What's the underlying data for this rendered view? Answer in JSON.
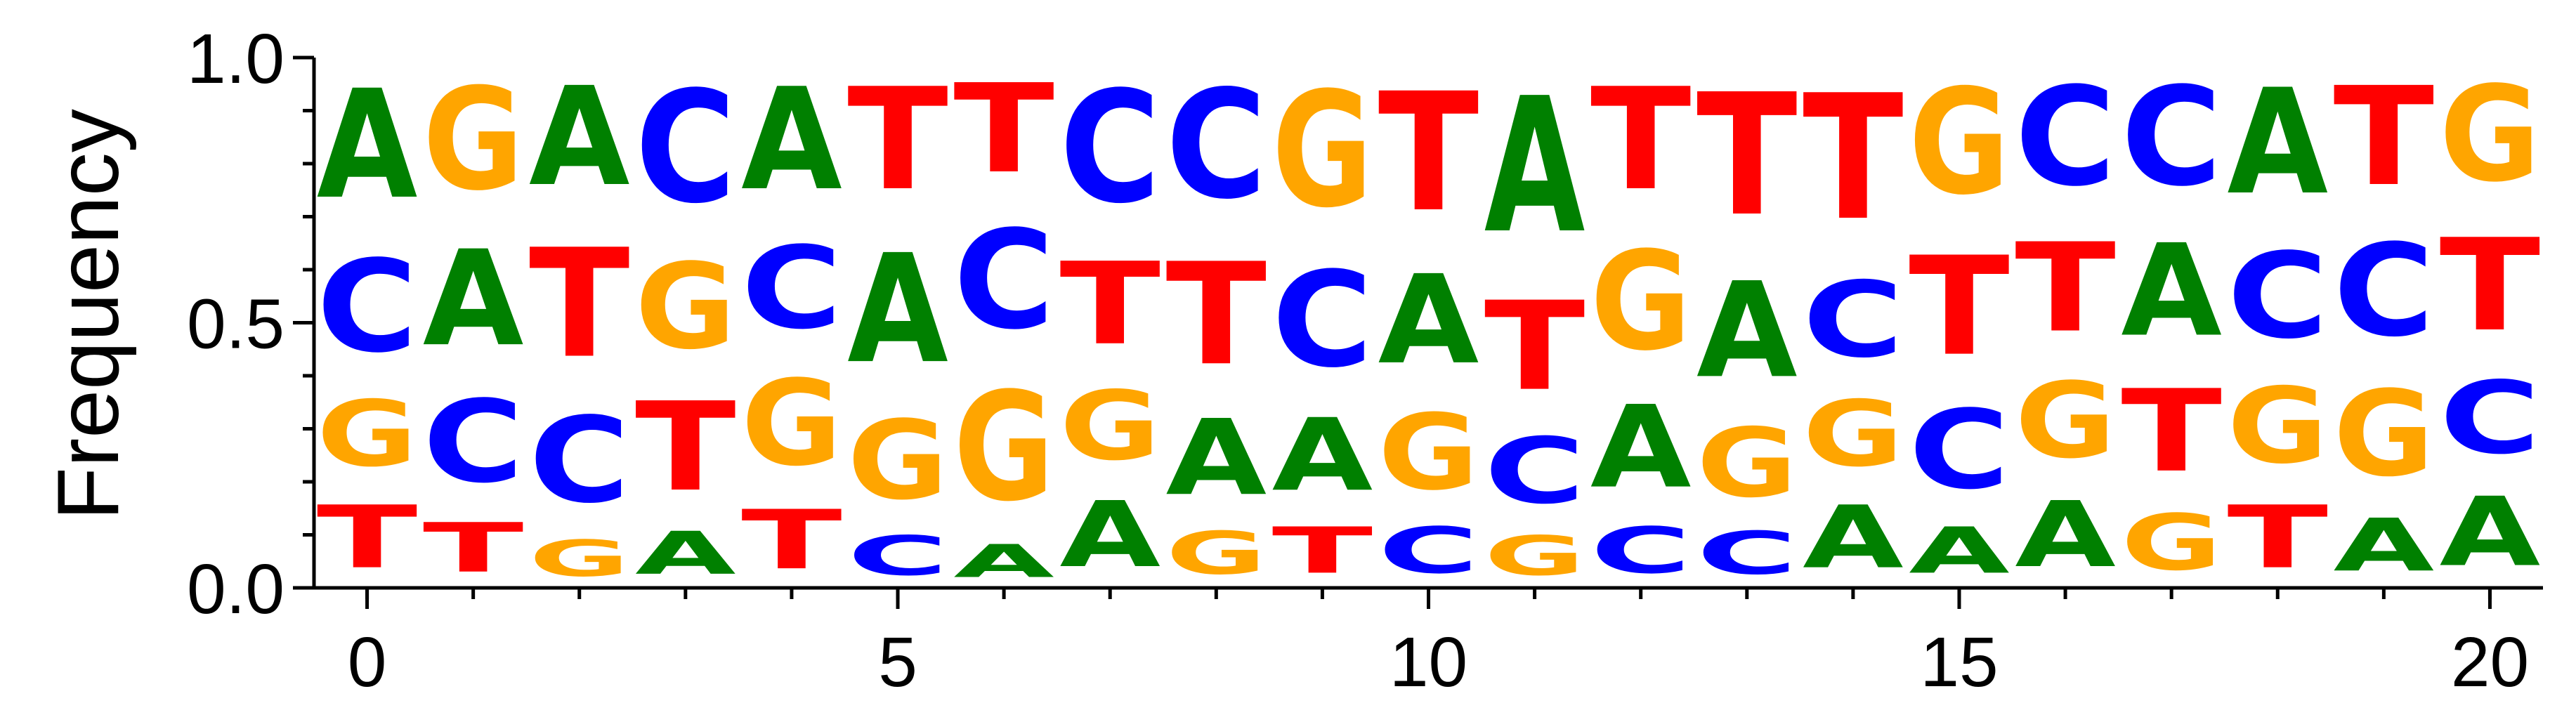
{
  "chart_data": {
    "type": "sequence_logo",
    "title": "",
    "xlabel": "",
    "ylabel": "Frequency",
    "xlim": [
      -0.5,
      20.5
    ],
    "ylim": [
      0,
      1
    ],
    "xticks": [
      0,
      5,
      10,
      15,
      20
    ],
    "yticks": [
      0,
      0.5,
      1
    ],
    "ytick_labels": [
      "0.0",
      "0.5",
      "1.0"
    ],
    "minor_xticks": [
      0,
      1,
      2,
      3,
      4,
      5,
      6,
      7,
      8,
      9,
      10,
      11,
      12,
      13,
      14,
      15,
      16,
      17,
      18,
      19,
      20
    ],
    "minor_yticks": [
      0.1,
      0.2,
      0.3,
      0.4,
      0.6,
      0.7,
      0.8,
      0.9
    ],
    "colors": {
      "A": "#008000",
      "C": "#0000ff",
      "G": "#ffa500",
      "T": "#ff0000"
    },
    "positions": [
      {
        "x": 0,
        "stack": [
          {
            "letter": "T",
            "value": 0.19
          },
          {
            "letter": "G",
            "value": 0.2
          },
          {
            "letter": "C",
            "value": 0.28
          },
          {
            "letter": "A",
            "value": 0.33
          }
        ]
      },
      {
        "x": 1,
        "stack": [
          {
            "letter": "T",
            "value": 0.15
          },
          {
            "letter": "C",
            "value": 0.25
          },
          {
            "letter": "A",
            "value": 0.29
          },
          {
            "letter": "G",
            "value": 0.31
          }
        ]
      },
      {
        "x": 2,
        "stack": [
          {
            "letter": "G",
            "value": 0.11
          },
          {
            "letter": "C",
            "value": 0.26
          },
          {
            "letter": "T",
            "value": 0.33
          },
          {
            "letter": "A",
            "value": 0.3
          }
        ]
      },
      {
        "x": 3,
        "stack": [
          {
            "letter": "A",
            "value": 0.13
          },
          {
            "letter": "T",
            "value": 0.27
          },
          {
            "letter": "G",
            "value": 0.26
          },
          {
            "letter": "C",
            "value": 0.34
          }
        ]
      },
      {
        "x": 4,
        "stack": [
          {
            "letter": "T",
            "value": 0.18
          },
          {
            "letter": "G",
            "value": 0.26
          },
          {
            "letter": "C",
            "value": 0.25
          },
          {
            "letter": "A",
            "value": 0.31
          }
        ]
      },
      {
        "x": 5,
        "stack": [
          {
            "letter": "C",
            "value": 0.12
          },
          {
            "letter": "G",
            "value": 0.24
          },
          {
            "letter": "A",
            "value": 0.33
          },
          {
            "letter": "T",
            "value": 0.31
          }
        ]
      },
      {
        "x": 6,
        "stack": [
          {
            "letter": "A",
            "value": 0.1
          },
          {
            "letter": "G",
            "value": 0.33
          },
          {
            "letter": "C",
            "value": 0.3
          },
          {
            "letter": "T",
            "value": 0.27
          }
        ]
      },
      {
        "x": 7,
        "stack": [
          {
            "letter": "A",
            "value": 0.2
          },
          {
            "letter": "G",
            "value": 0.21
          },
          {
            "letter": "T",
            "value": 0.25
          },
          {
            "letter": "C",
            "value": 0.34
          }
        ]
      },
      {
        "x": 8,
        "stack": [
          {
            "letter": "G",
            "value": 0.13
          },
          {
            "letter": "A",
            "value": 0.23
          },
          {
            "letter": "T",
            "value": 0.31
          },
          {
            "letter": "C",
            "value": 0.33
          }
        ]
      },
      {
        "x": 9,
        "stack": [
          {
            "letter": "T",
            "value": 0.14
          },
          {
            "letter": "A",
            "value": 0.22
          },
          {
            "letter": "C",
            "value": 0.29
          },
          {
            "letter": "G",
            "value": 0.35
          }
        ]
      },
      {
        "x": 10,
        "stack": [
          {
            "letter": "C",
            "value": 0.14
          },
          {
            "letter": "G",
            "value": 0.23
          },
          {
            "letter": "A",
            "value": 0.27
          },
          {
            "letter": "T",
            "value": 0.36
          }
        ]
      },
      {
        "x": 11,
        "stack": [
          {
            "letter": "G",
            "value": 0.12
          },
          {
            "letter": "C",
            "value": 0.2
          },
          {
            "letter": "T",
            "value": 0.27
          },
          {
            "letter": "A",
            "value": 0.41
          }
        ]
      },
      {
        "x": 12,
        "stack": [
          {
            "letter": "C",
            "value": 0.14
          },
          {
            "letter": "A",
            "value": 0.25
          },
          {
            "letter": "G",
            "value": 0.3
          },
          {
            "letter": "T",
            "value": 0.31
          }
        ]
      },
      {
        "x": 13,
        "stack": [
          {
            "letter": "C",
            "value": 0.13
          },
          {
            "letter": "G",
            "value": 0.21
          },
          {
            "letter": "A",
            "value": 0.29
          },
          {
            "letter": "T",
            "value": 0.37
          }
        ]
      },
      {
        "x": 14,
        "stack": [
          {
            "letter": "A",
            "value": 0.19
          },
          {
            "letter": "G",
            "value": 0.2
          },
          {
            "letter": "C",
            "value": 0.23
          },
          {
            "letter": "T",
            "value": 0.38
          }
        ]
      },
      {
        "x": 15,
        "stack": [
          {
            "letter": "A",
            "value": 0.14
          },
          {
            "letter": "C",
            "value": 0.24
          },
          {
            "letter": "T",
            "value": 0.3
          },
          {
            "letter": "G",
            "value": 0.32
          }
        ]
      },
      {
        "x": 16,
        "stack": [
          {
            "letter": "A",
            "value": 0.2
          },
          {
            "letter": "G",
            "value": 0.23
          },
          {
            "letter": "T",
            "value": 0.27
          },
          {
            "letter": "C",
            "value": 0.3
          }
        ]
      },
      {
        "x": 17,
        "stack": [
          {
            "letter": "G",
            "value": 0.17
          },
          {
            "letter": "T",
            "value": 0.25
          },
          {
            "letter": "A",
            "value": 0.28
          },
          {
            "letter": "C",
            "value": 0.3
          }
        ]
      },
      {
        "x": 18,
        "stack": [
          {
            "letter": "T",
            "value": 0.19
          },
          {
            "letter": "G",
            "value": 0.23
          },
          {
            "letter": "C",
            "value": 0.26
          },
          {
            "letter": "A",
            "value": 0.32
          }
        ]
      },
      {
        "x": 19,
        "stack": [
          {
            "letter": "A",
            "value": 0.16
          },
          {
            "letter": "G",
            "value": 0.26
          },
          {
            "letter": "C",
            "value": 0.28
          },
          {
            "letter": "T",
            "value": 0.3
          }
        ]
      },
      {
        "x": 20,
        "stack": [
          {
            "letter": "A",
            "value": 0.21
          },
          {
            "letter": "C",
            "value": 0.22
          },
          {
            "letter": "T",
            "value": 0.28
          },
          {
            "letter": "G",
            "value": 0.29
          }
        ]
      }
    ]
  }
}
